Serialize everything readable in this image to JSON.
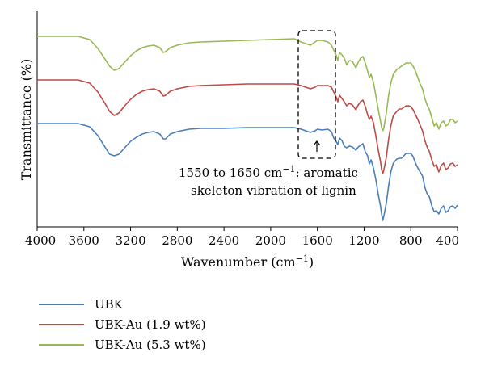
{
  "chart_data": {
    "type": "line",
    "xlabel_main": "Wavenumber (cm",
    "xlabel_sup": "−1",
    "xlabel_close": ")",
    "ylabel": "Transmittance (%)",
    "xlim": [
      4000,
      400
    ],
    "x_ticks": [
      "4000",
      "3600",
      "3200",
      "2800",
      "2400",
      "2000",
      "1600",
      "1200",
      "800",
      "400"
    ],
    "series": [
      {
        "name": "UBK",
        "color": "#4a7ebb",
        "points": [
          [
            4000,
            153
          ],
          [
            3800,
            153
          ],
          [
            3650,
            153
          ],
          [
            3550,
            157
          ],
          [
            3480,
            168
          ],
          [
            3420,
            182
          ],
          [
            3380,
            191
          ],
          [
            3340,
            193
          ],
          [
            3300,
            191
          ],
          [
            3250,
            183
          ],
          [
            3200,
            175
          ],
          [
            3150,
            170
          ],
          [
            3100,
            166
          ],
          [
            3050,
            164
          ],
          [
            3000,
            163
          ],
          [
            2950,
            166
          ],
          [
            2920,
            172
          ],
          [
            2900,
            172
          ],
          [
            2860,
            166
          ],
          [
            2800,
            163
          ],
          [
            2700,
            160
          ],
          [
            2600,
            159
          ],
          [
            2400,
            159
          ],
          [
            2200,
            158
          ],
          [
            2000,
            158
          ],
          [
            1800,
            158
          ],
          [
            1740,
            160
          ],
          [
            1700,
            162
          ],
          [
            1660,
            164
          ],
          [
            1620,
            162
          ],
          [
            1600,
            160
          ],
          [
            1560,
            161
          ],
          [
            1510,
            160
          ],
          [
            1480,
            163
          ],
          [
            1460,
            171
          ],
          [
            1440,
            175
          ],
          [
            1425,
            179
          ],
          [
            1410,
            171
          ],
          [
            1390,
            174
          ],
          [
            1370,
            181
          ],
          [
            1350,
            183
          ],
          [
            1325,
            181
          ],
          [
            1300,
            182
          ],
          [
            1270,
            186
          ],
          [
            1250,
            182
          ],
          [
            1230,
            180
          ],
          [
            1210,
            178
          ],
          [
            1190,
            188
          ],
          [
            1170,
            193
          ],
          [
            1155,
            203
          ],
          [
            1140,
            198
          ],
          [
            1120,
            208
          ],
          [
            1100,
            222
          ],
          [
            1080,
            240
          ],
          [
            1060,
            255
          ],
          [
            1050,
            265
          ],
          [
            1040,
            273
          ],
          [
            1030,
            267
          ],
          [
            1010,
            252
          ],
          [
            990,
            230
          ],
          [
            970,
            212
          ],
          [
            950,
            202
          ],
          [
            920,
            197
          ],
          [
            900,
            196
          ],
          [
            880,
            196
          ],
          [
            860,
            193
          ],
          [
            840,
            190
          ],
          [
            820,
            190
          ],
          [
            800,
            190
          ],
          [
            780,
            194
          ],
          [
            760,
            202
          ],
          [
            740,
            208
          ],
          [
            720,
            213
          ],
          [
            700,
            218
          ],
          [
            680,
            232
          ],
          [
            660,
            240
          ],
          [
            640,
            244
          ],
          [
            620,
            255
          ],
          [
            600,
            262
          ],
          [
            580,
            261
          ],
          [
            560,
            265
          ],
          [
            540,
            258
          ],
          [
            520,
            255
          ],
          [
            500,
            263
          ],
          [
            480,
            261
          ],
          [
            460,
            256
          ],
          [
            440,
            255
          ],
          [
            420,
            258
          ],
          [
            400,
            254
          ]
        ]
      },
      {
        "name": "UBK-Au (1.9 wt%)",
        "color": "#be4b48",
        "points": [
          [
            4000,
            99
          ],
          [
            3800,
            99
          ],
          [
            3650,
            99
          ],
          [
            3550,
            103
          ],
          [
            3480,
            114
          ],
          [
            3420,
            128
          ],
          [
            3380,
            138
          ],
          [
            3340,
            143
          ],
          [
            3300,
            140
          ],
          [
            3250,
            131
          ],
          [
            3200,
            123
          ],
          [
            3150,
            117
          ],
          [
            3100,
            113
          ],
          [
            3050,
            111
          ],
          [
            3000,
            110
          ],
          [
            2950,
            113
          ],
          [
            2920,
            119
          ],
          [
            2900,
            118
          ],
          [
            2860,
            113
          ],
          [
            2800,
            110
          ],
          [
            2700,
            107
          ],
          [
            2600,
            106
          ],
          [
            2400,
            105
          ],
          [
            2200,
            104
          ],
          [
            2000,
            104
          ],
          [
            1800,
            104
          ],
          [
            1740,
            106
          ],
          [
            1700,
            108
          ],
          [
            1660,
            110
          ],
          [
            1620,
            108
          ],
          [
            1600,
            106
          ],
          [
            1560,
            106
          ],
          [
            1510,
            106
          ],
          [
            1480,
            108
          ],
          [
            1460,
            114
          ],
          [
            1440,
            120
          ],
          [
            1425,
            126
          ],
          [
            1410,
            118
          ],
          [
            1390,
            122
          ],
          [
            1370,
            126
          ],
          [
            1350,
            131
          ],
          [
            1325,
            128
          ],
          [
            1300,
            130
          ],
          [
            1270,
            136
          ],
          [
            1250,
            130
          ],
          [
            1230,
            126
          ],
          [
            1210,
            124
          ],
          [
            1190,
            132
          ],
          [
            1170,
            142
          ],
          [
            1155,
            148
          ],
          [
            1140,
            144
          ],
          [
            1120,
            152
          ],
          [
            1100,
            168
          ],
          [
            1080,
            185
          ],
          [
            1060,
            200
          ],
          [
            1050,
            210
          ],
          [
            1040,
            215
          ],
          [
            1030,
            210
          ],
          [
            1010,
            195
          ],
          [
            990,
            172
          ],
          [
            970,
            155
          ],
          [
            950,
            143
          ],
          [
            920,
            138
          ],
          [
            900,
            135
          ],
          [
            880,
            135
          ],
          [
            860,
            133
          ],
          [
            840,
            131
          ],
          [
            820,
            131
          ],
          [
            800,
            132
          ],
          [
            780,
            136
          ],
          [
            760,
            142
          ],
          [
            740,
            148
          ],
          [
            720,
            155
          ],
          [
            700,
            162
          ],
          [
            680,
            174
          ],
          [
            660,
            182
          ],
          [
            640,
            188
          ],
          [
            620,
            198
          ],
          [
            600,
            206
          ],
          [
            580,
            204
          ],
          [
            560,
            213
          ],
          [
            540,
            205
          ],
          [
            520,
            202
          ],
          [
            500,
            210
          ],
          [
            480,
            208
          ],
          [
            460,
            203
          ],
          [
            440,
            202
          ],
          [
            420,
            206
          ],
          [
            400,
            204
          ]
        ]
      },
      {
        "name": "UBK-Au (5.3 wt%)",
        "color": "#98b954",
        "points": [
          [
            4000,
            45
          ],
          [
            3800,
            45
          ],
          [
            3650,
            45
          ],
          [
            3550,
            49
          ],
          [
            3480,
            60
          ],
          [
            3420,
            73
          ],
          [
            3380,
            82
          ],
          [
            3340,
            87
          ],
          [
            3300,
            85
          ],
          [
            3250,
            77
          ],
          [
            3200,
            69
          ],
          [
            3150,
            63
          ],
          [
            3100,
            59
          ],
          [
            3050,
            57
          ],
          [
            3000,
            56
          ],
          [
            2950,
            59
          ],
          [
            2920,
            65
          ],
          [
            2900,
            64
          ],
          [
            2860,
            59
          ],
          [
            2800,
            56
          ],
          [
            2700,
            53
          ],
          [
            2600,
            52
          ],
          [
            2400,
            51
          ],
          [
            2200,
            50
          ],
          [
            2000,
            49
          ],
          [
            1800,
            48
          ],
          [
            1740,
            52
          ],
          [
            1700,
            54
          ],
          [
            1660,
            56
          ],
          [
            1620,
            52
          ],
          [
            1600,
            50
          ],
          [
            1560,
            50
          ],
          [
            1510,
            52
          ],
          [
            1480,
            56
          ],
          [
            1460,
            62
          ],
          [
            1440,
            68
          ],
          [
            1425,
            75
          ],
          [
            1410,
            65
          ],
          [
            1390,
            68
          ],
          [
            1370,
            72
          ],
          [
            1350,
            80
          ],
          [
            1325,
            75
          ],
          [
            1300,
            76
          ],
          [
            1270,
            84
          ],
          [
            1250,
            77
          ],
          [
            1230,
            72
          ],
          [
            1210,
            70
          ],
          [
            1190,
            78
          ],
          [
            1170,
            88
          ],
          [
            1155,
            96
          ],
          [
            1140,
            92
          ],
          [
            1120,
            102
          ],
          [
            1100,
            118
          ],
          [
            1080,
            135
          ],
          [
            1060,
            150
          ],
          [
            1050,
            158
          ],
          [
            1040,
            162
          ],
          [
            1030,
            158
          ],
          [
            1010,
            140
          ],
          [
            990,
            118
          ],
          [
            970,
            102
          ],
          [
            950,
            92
          ],
          [
            920,
            86
          ],
          [
            900,
            84
          ],
          [
            880,
            82
          ],
          [
            860,
            80
          ],
          [
            840,
            78
          ],
          [
            820,
            78
          ],
          [
            800,
            78
          ],
          [
            780,
            82
          ],
          [
            760,
            88
          ],
          [
            740,
            96
          ],
          [
            720,
            104
          ],
          [
            700,
            110
          ],
          [
            680,
            122
          ],
          [
            660,
            130
          ],
          [
            640,
            136
          ],
          [
            620,
            146
          ],
          [
            600,
            156
          ],
          [
            580,
            152
          ],
          [
            560,
            160
          ],
          [
            540,
            152
          ],
          [
            520,
            150
          ],
          [
            500,
            156
          ],
          [
            480,
            154
          ],
          [
            460,
            148
          ],
          [
            440,
            148
          ],
          [
            420,
            152
          ],
          [
            400,
            150
          ]
        ]
      }
    ],
    "annotation": {
      "line1_a": "1550 to 1650 cm",
      "line1_sup": "−1",
      "line1_b": ": aromatic",
      "line2": "skeleton vibration of lignin"
    },
    "grid": false,
    "legend_position": "bottom-left"
  }
}
